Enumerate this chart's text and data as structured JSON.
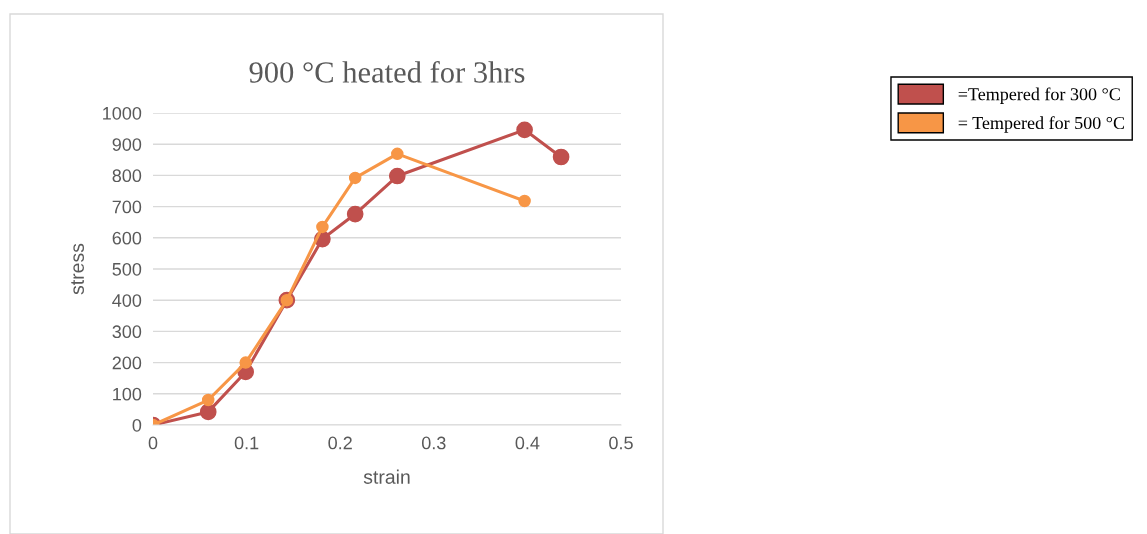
{
  "chart_data": {
    "type": "line",
    "title": "900 °C heated for 3hrs",
    "xlabel": "strain",
    "ylabel": "stress",
    "series": [
      {
        "name": "=Tempered for 300 °C",
        "color": "#c0504d",
        "x": [
          0,
          0.059,
          0.099,
          0.143,
          0.181,
          0.216,
          0.261,
          0.397,
          0.436
        ],
        "values": [
          0,
          42,
          170,
          400,
          596,
          676,
          798,
          946,
          859
        ]
      },
      {
        "name": "= Tempered for 500 °C",
        "color": "#f79646",
        "x": [
          0,
          0.059,
          0.099,
          0.143,
          0.181,
          0.216,
          0.261,
          0.397
        ],
        "values": [
          0,
          80,
          200,
          400,
          635,
          792,
          869,
          718
        ]
      }
    ],
    "xlim": [
      0,
      0.5
    ],
    "xticks": [
      0,
      0.1,
      0.2,
      0.3,
      0.4,
      0.5
    ],
    "ylim": [
      0,
      1000
    ],
    "yticks": [
      0,
      100,
      200,
      300,
      400,
      500,
      600,
      700,
      800,
      900,
      1000
    ],
    "grid": "y",
    "legend": "right",
    "marker": "circle",
    "line_style": "solid"
  }
}
